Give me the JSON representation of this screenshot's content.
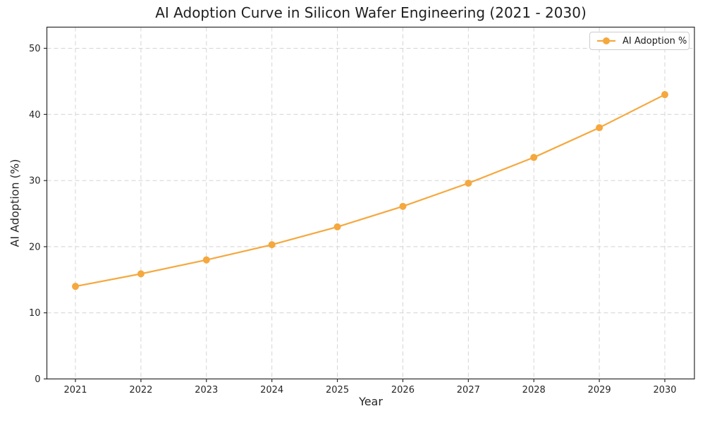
{
  "chart_data": {
    "type": "line",
    "title": "AI Adoption Curve in Silicon Wafer Engineering (2021 - 2030)",
    "xlabel": "Year",
    "ylabel": "AI Adoption (%)",
    "categories": [
      "2021",
      "2022",
      "2023",
      "2024",
      "2025",
      "2026",
      "2027",
      "2028",
      "2029",
      "2030"
    ],
    "series": [
      {
        "name": "AI Adoption %",
        "color": "#f5a83e",
        "marker": "circle",
        "values": [
          14.0,
          15.9,
          18.0,
          20.3,
          23.0,
          26.1,
          29.6,
          33.5,
          38.0,
          43.0
        ]
      }
    ],
    "yticks": [
      0,
      10,
      20,
      30,
      40,
      50
    ],
    "ylim": [
      0,
      53.2
    ],
    "grid": true,
    "grid_style": "dashed",
    "legend_position": "upper right",
    "colors": {
      "grid": "#d4d4d4",
      "spine": "#2b2b2b",
      "tick_text": "#262626",
      "background": "#ffffff"
    }
  }
}
